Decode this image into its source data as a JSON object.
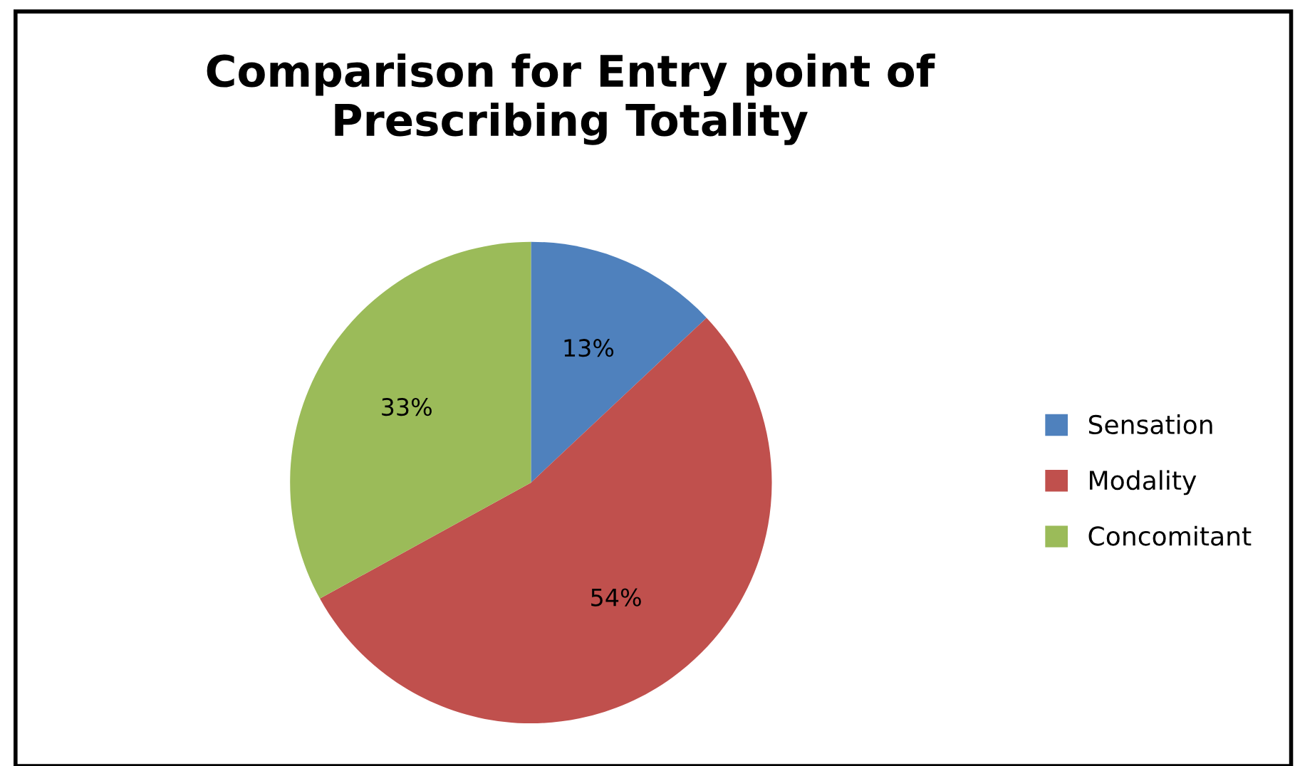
{
  "chart_data": {
    "type": "pie",
    "title": "Comparison for Entry point of\nPrescribing Totality",
    "categories": [
      "Sensation",
      "Modality",
      "Concomitant"
    ],
    "values": [
      13,
      54,
      33
    ],
    "colors": [
      "#4f81bd",
      "#c0504d",
      "#9bbb59"
    ],
    "value_labels": [
      "13%",
      "54%",
      "33%"
    ],
    "legend": "right"
  }
}
